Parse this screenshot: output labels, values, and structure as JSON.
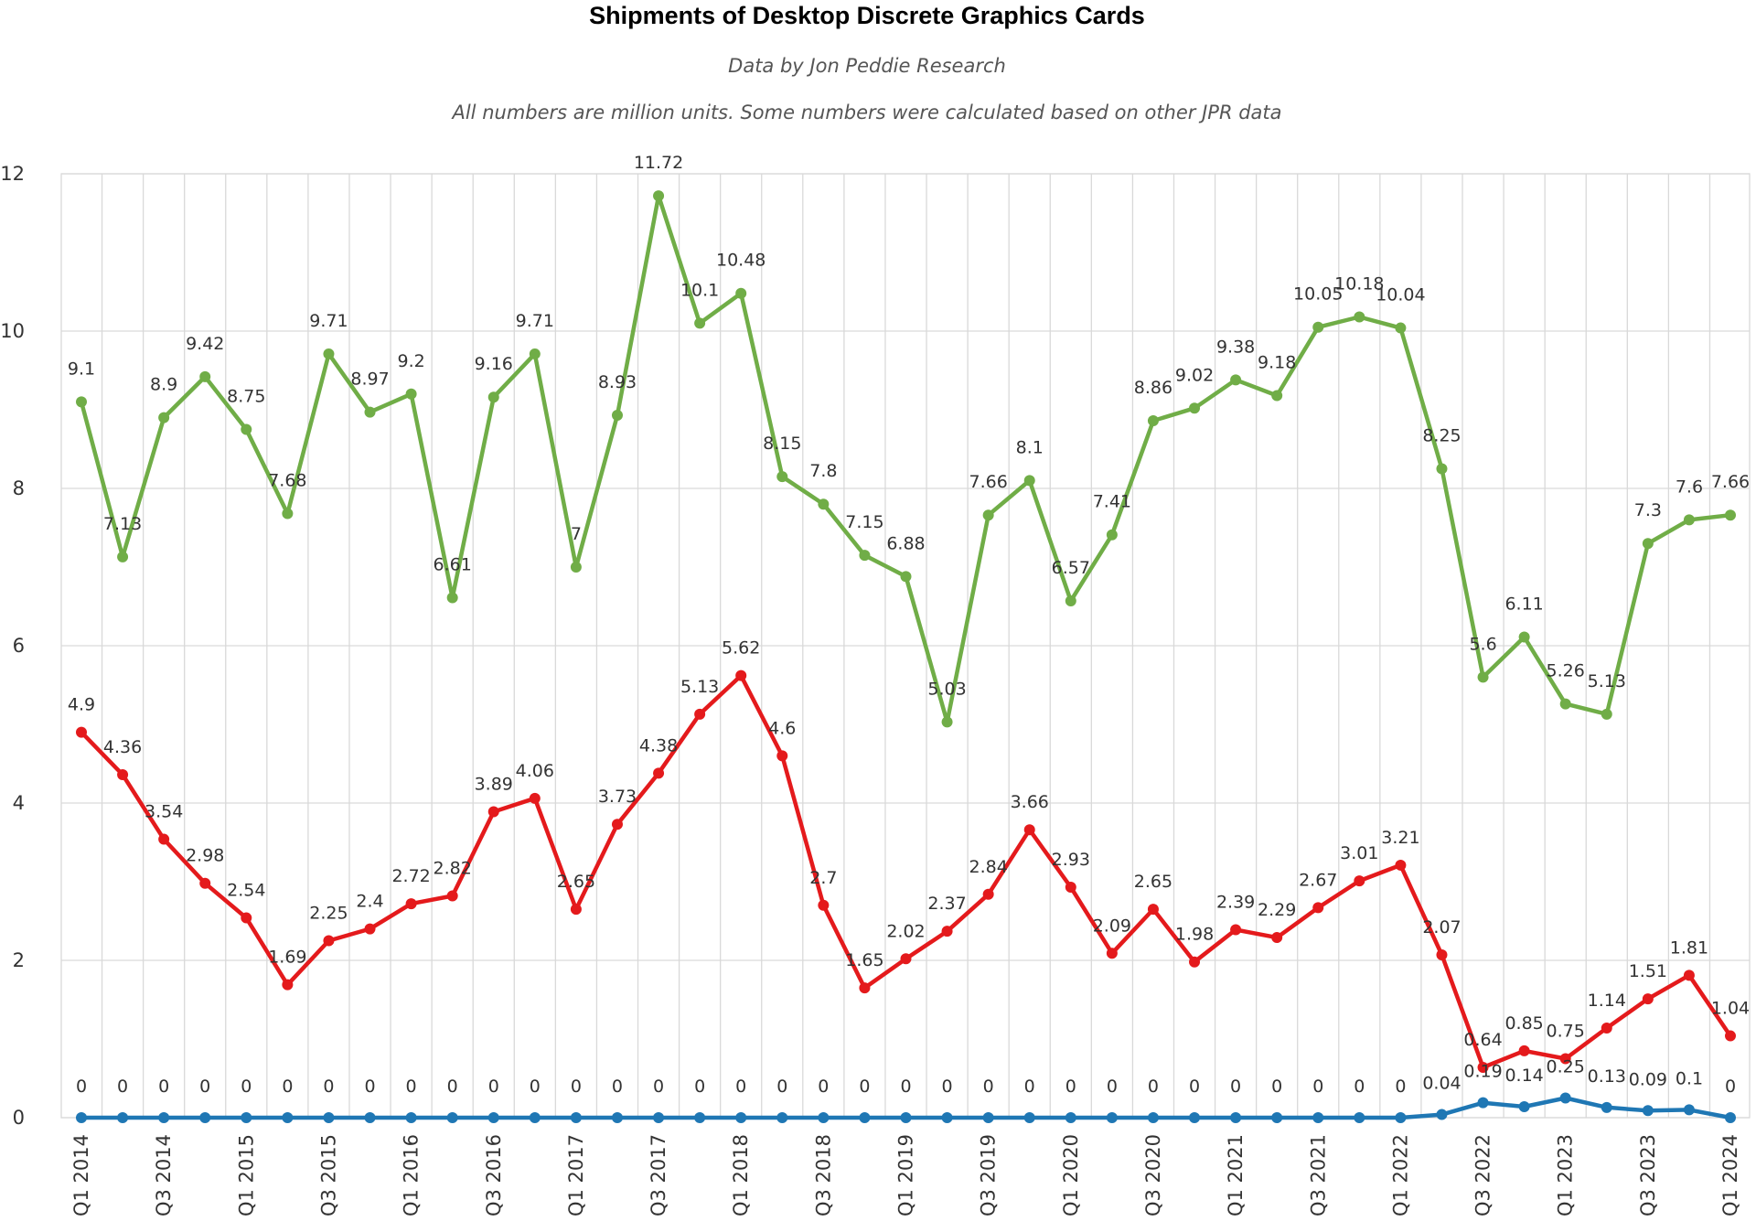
{
  "chart_data": {
    "type": "line",
    "title": "Shipments of Desktop Discrete Graphics Cards",
    "subtitles": [
      "Data by Jon Peddie Research",
      "All numbers are million units. Some numbers were calculated based on other JPR data"
    ],
    "xlabel": "",
    "ylabel": "",
    "ylim": [
      0,
      12
    ],
    "yticks": [
      0,
      2,
      4,
      6,
      8,
      10,
      12
    ],
    "grid": true,
    "legend": "none",
    "categories": [
      "Q1 2014",
      "Q2 2014",
      "Q3 2014",
      "Q4 2014",
      "Q1 2015",
      "Q2 2015",
      "Q3 2015",
      "Q4 2015",
      "Q1 2016",
      "Q2 2016",
      "Q3 2016",
      "Q4 2016",
      "Q1 2017",
      "Q2 2017",
      "Q3 2017",
      "Q4 2017",
      "Q1 2018",
      "Q2 2018",
      "Q3 2018",
      "Q4 2018",
      "Q1 2019",
      "Q2 2019",
      "Q3 2019",
      "Q4 2019",
      "Q1 2020",
      "Q2 2020",
      "Q3 2020",
      "Q4 2020",
      "Q1 2021",
      "Q2 2021",
      "Q3 2021",
      "Q4 2021",
      "Q1 2022",
      "Q2 2022",
      "Q3 2022",
      "Q4 2022",
      "Q1 2023",
      "Q2 2023",
      "Q3 2023",
      "Q4 2023",
      "Q1 2024"
    ],
    "x_tick_labels": [
      "Q1 2014",
      "Q3 2014",
      "Q1 2015",
      "Q3 2015",
      "Q1 2016",
      "Q3 2016",
      "Q1 2017",
      "Q3 2017",
      "Q1 2018",
      "Q3 2018",
      "Q1 2019",
      "Q3 2019",
      "Q1 2020",
      "Q3 2020",
      "Q1 2021",
      "Q3 2021",
      "Q1 2022",
      "Q3 2022",
      "Q1 2023",
      "Q3 2023",
      "Q1 2024"
    ],
    "series": [
      {
        "color": "#70ad47",
        "values": [
          9.1,
          7.13,
          8.9,
          9.42,
          8.75,
          7.68,
          9.71,
          8.97,
          9.2,
          6.61,
          9.16,
          9.71,
          7,
          8.93,
          11.72,
          10.1,
          10.48,
          8.15,
          7.8,
          7.15,
          6.88,
          5.03,
          7.66,
          8.1,
          6.57,
          7.41,
          8.86,
          9.02,
          9.38,
          9.18,
          10.05,
          10.18,
          10.04,
          8.25,
          5.6,
          6.11,
          5.26,
          5.13,
          7.3,
          7.6,
          7.66
        ]
      },
      {
        "color": "#e41a1c",
        "values": [
          4.9,
          4.36,
          3.54,
          2.98,
          2.54,
          1.69,
          2.25,
          2.4,
          2.72,
          2.82,
          3.89,
          4.06,
          2.65,
          3.73,
          4.38,
          5.13,
          5.62,
          4.6,
          2.7,
          1.65,
          2.02,
          2.37,
          2.84,
          3.66,
          2.93,
          2.09,
          2.65,
          1.98,
          2.39,
          2.29,
          2.67,
          3.01,
          3.21,
          2.07,
          0.64,
          0.85,
          0.75,
          1.14,
          1.51,
          1.81,
          1.04
        ]
      },
      {
        "color": "#1f77b4",
        "values": [
          0,
          0,
          0,
          0,
          0,
          0,
          0,
          0,
          0,
          0,
          0,
          0,
          0,
          0,
          0,
          0,
          0,
          0,
          0,
          0,
          0,
          0,
          0,
          0,
          0,
          0,
          0,
          0,
          0,
          0,
          0,
          0,
          0,
          0.04,
          0.19,
          0.14,
          0.25,
          0.13,
          0.09,
          0.1,
          0
        ]
      }
    ]
  }
}
